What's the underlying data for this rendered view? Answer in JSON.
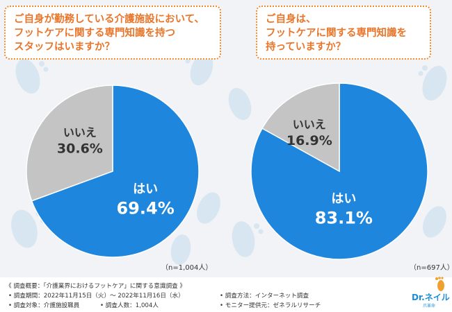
{
  "questions": {
    "left": "ご自身が勤務している介護施設において、\nフットケアに関する専門知識を持つ\nスタッフはいますか？",
    "right": "ご自身は、\nフットケアに関する専門知識を\n持っていますか？"
  },
  "chart_data": [
    {
      "type": "pie",
      "title": "ご自身が勤務している介護施設において、フットケアに関する専門知識を持つスタッフはいますか？",
      "slices": [
        {
          "label": "はい",
          "value": 69.4,
          "value_text": "69.4%",
          "color": "#1f86de"
        },
        {
          "label": "いいえ",
          "value": 30.6,
          "value_text": "30.6%",
          "color": "#c4c4c4"
        }
      ],
      "n_label": "（n=1,004人）"
    },
    {
      "type": "pie",
      "title": "ご自身は、フットケアに関する専門知識を持っていますか？",
      "slices": [
        {
          "label": "はい",
          "value": 83.1,
          "value_text": "83.1%",
          "color": "#1f86de"
        },
        {
          "label": "いいえ",
          "value": 16.9,
          "value_text": "16.9%",
          "color": "#c4c4c4"
        }
      ],
      "n_label": "（n=697人）"
    }
  ],
  "footer": {
    "title": "《 調査概要：「介護業界におけるフットケア」に関する意識調査 》",
    "period": "• 調査期間：2022年11月15日（火）～ 2022年11月16日（水）",
    "method": "• 調査方法：インターネット調査",
    "target": "• 調査対象：介護施設職員",
    "count": "• 調査人数：1,004人",
    "monitor": "• モニター提供元：ゼネラルリサーチ"
  },
  "logo": {
    "text": "Dr.ネイル",
    "sub": "爪革命"
  },
  "colors": {
    "accent": "#ee8a2e",
    "yes": "#1f86de",
    "no": "#c4c4c4",
    "footprint": "#d2e3ee"
  }
}
